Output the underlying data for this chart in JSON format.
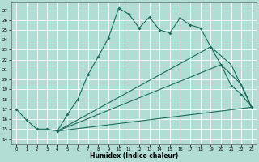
{
  "xlabel": "Humidex (Indice chaleur)",
  "bg_color": "#b2ddd4",
  "grid_color": "#ffffff",
  "line_color": "#1a6b5a",
  "xlim": [
    -0.5,
    23.5
  ],
  "ylim": [
    13.5,
    27.8
  ],
  "xticks": [
    0,
    1,
    2,
    3,
    4,
    5,
    6,
    7,
    8,
    9,
    10,
    11,
    12,
    13,
    14,
    15,
    16,
    17,
    18,
    19,
    20,
    21,
    22,
    23
  ],
  "yticks": [
    14,
    15,
    16,
    17,
    18,
    19,
    20,
    21,
    22,
    23,
    24,
    25,
    26,
    27
  ],
  "line1_x": [
    0,
    1,
    2,
    3,
    4,
    5,
    6,
    7,
    8,
    9,
    10,
    11,
    12,
    13,
    14,
    15,
    16,
    17,
    18,
    19,
    20,
    21,
    22,
    23
  ],
  "line1_y": [
    17.0,
    15.9,
    15.0,
    15.0,
    14.8,
    16.5,
    18.0,
    20.5,
    22.3,
    24.2,
    27.2,
    26.6,
    25.2,
    26.3,
    25.0,
    24.7,
    26.2,
    25.5,
    25.2,
    23.3,
    21.5,
    19.4,
    18.5,
    17.2
  ],
  "line2_x": [
    4,
    19,
    21,
    23
  ],
  "line2_y": [
    14.8,
    23.3,
    21.5,
    17.2
  ],
  "line3_x": [
    4,
    20,
    22,
    23
  ],
  "line3_y": [
    14.8,
    21.5,
    19.5,
    17.2
  ],
  "line4_x": [
    4,
    23
  ],
  "line4_y": [
    14.8,
    17.2
  ],
  "marker_start_x": [
    0,
    1,
    2,
    3,
    4,
    5,
    6,
    7,
    8,
    9,
    10,
    11,
    12,
    13,
    14,
    15,
    16,
    17,
    18,
    19,
    20,
    21,
    22,
    23
  ],
  "marker_start_y": [
    17.0,
    15.9,
    15.0,
    15.0,
    14.8,
    16.5,
    18.0,
    20.5,
    22.3,
    24.2,
    27.2,
    26.6,
    25.2,
    26.3,
    25.0,
    24.7,
    26.2,
    25.5,
    25.2,
    23.3,
    21.5,
    19.4,
    18.5,
    17.2
  ]
}
